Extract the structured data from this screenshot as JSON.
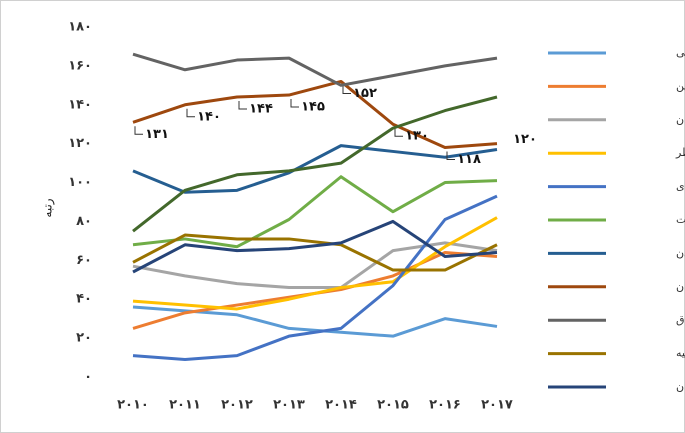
{
  "chart_data": {
    "type": "line",
    "y_label": "رتبه",
    "categories": [
      "۲۰۱۰",
      "۲۰۱۱",
      "۲۰۱۲",
      "۲۰۱۳",
      "۲۰۱۴",
      "۲۰۱۵",
      "۲۰۱۶",
      "۲۰۱۷"
    ],
    "ylim": [
      0,
      180
    ],
    "yticks": [
      {
        "value": 0,
        "label": "۰"
      },
      {
        "value": 20,
        "label": "۲۰"
      },
      {
        "value": 40,
        "label": "۴۰"
      },
      {
        "value": 60,
        "label": "۶۰"
      },
      {
        "value": 80,
        "label": "۸۰"
      },
      {
        "value": 100,
        "label": "۱۰۰"
      },
      {
        "value": 120,
        "label": "۱۲۰"
      },
      {
        "value": 140,
        "label": "۱۴۰"
      },
      {
        "value": 160,
        "label": "۱۶۰"
      },
      {
        "value": 180,
        "label": "۱۸۰"
      }
    ],
    "grid": false,
    "legend": "right",
    "series": [
      {
        "name": "امارات متحده عربی",
        "color": "#5B9BD5",
        "values": [
          36,
          34,
          32,
          25,
          23,
          21,
          30,
          26
        ]
      },
      {
        "name": "بحرین",
        "color": "#ED7D31",
        "values": [
          25,
          33,
          37,
          41,
          45,
          52,
          64,
          62
        ]
      },
      {
        "name": "عمان",
        "color": "#A5A5A5",
        "values": [
          57,
          52,
          48,
          46,
          46,
          65,
          69,
          65
        ]
      },
      {
        "name": "قطر",
        "color": "#FFC000",
        "values": [
          39,
          37,
          35,
          40,
          46,
          49,
          67,
          82
        ]
      },
      {
        "name": "عربستان صعودی",
        "color": "#4472C4",
        "values": [
          11,
          9,
          11,
          21,
          25,
          47,
          81,
          93
        ]
      },
      {
        "name": "کویت",
        "color": "#70AD47",
        "values": [
          68,
          71,
          67,
          81,
          103,
          85,
          100,
          101
        ]
      },
      {
        "name": "اردن",
        "color": "#255E91",
        "values": [
          106,
          95,
          96,
          105,
          119,
          116,
          113,
          117
        ]
      },
      {
        "name": "ایران",
        "color": "#9E480E",
        "values": [
          131,
          140,
          144,
          145,
          152,
          130,
          118,
          120
        ],
        "value_labels": [
          "۱۳۱",
          "۱۴۰",
          "۱۴۴",
          "۱۴۵",
          "۱۵۲",
          "۱۳۰",
          "۱۱۸",
          "۱۲۰"
        ]
      },
      {
        "name": "عراق",
        "color": "#636363",
        "values": [
          166,
          158,
          163,
          164,
          150,
          155,
          160,
          164
        ]
      },
      {
        "name": "ترکیه",
        "color": "#997300",
        "values": [
          59,
          73,
          71,
          71,
          68,
          55,
          55,
          68
        ]
      },
      {
        "name": "آذربایجان",
        "color": "#264478",
        "values": [
          54,
          68,
          65,
          66,
          69,
          80,
          62,
          64
        ]
      },
      {
        "color": "#43682B",
        "values": [
          75,
          96,
          104,
          106,
          110,
          128,
          137,
          144
        ]
      }
    ]
  }
}
